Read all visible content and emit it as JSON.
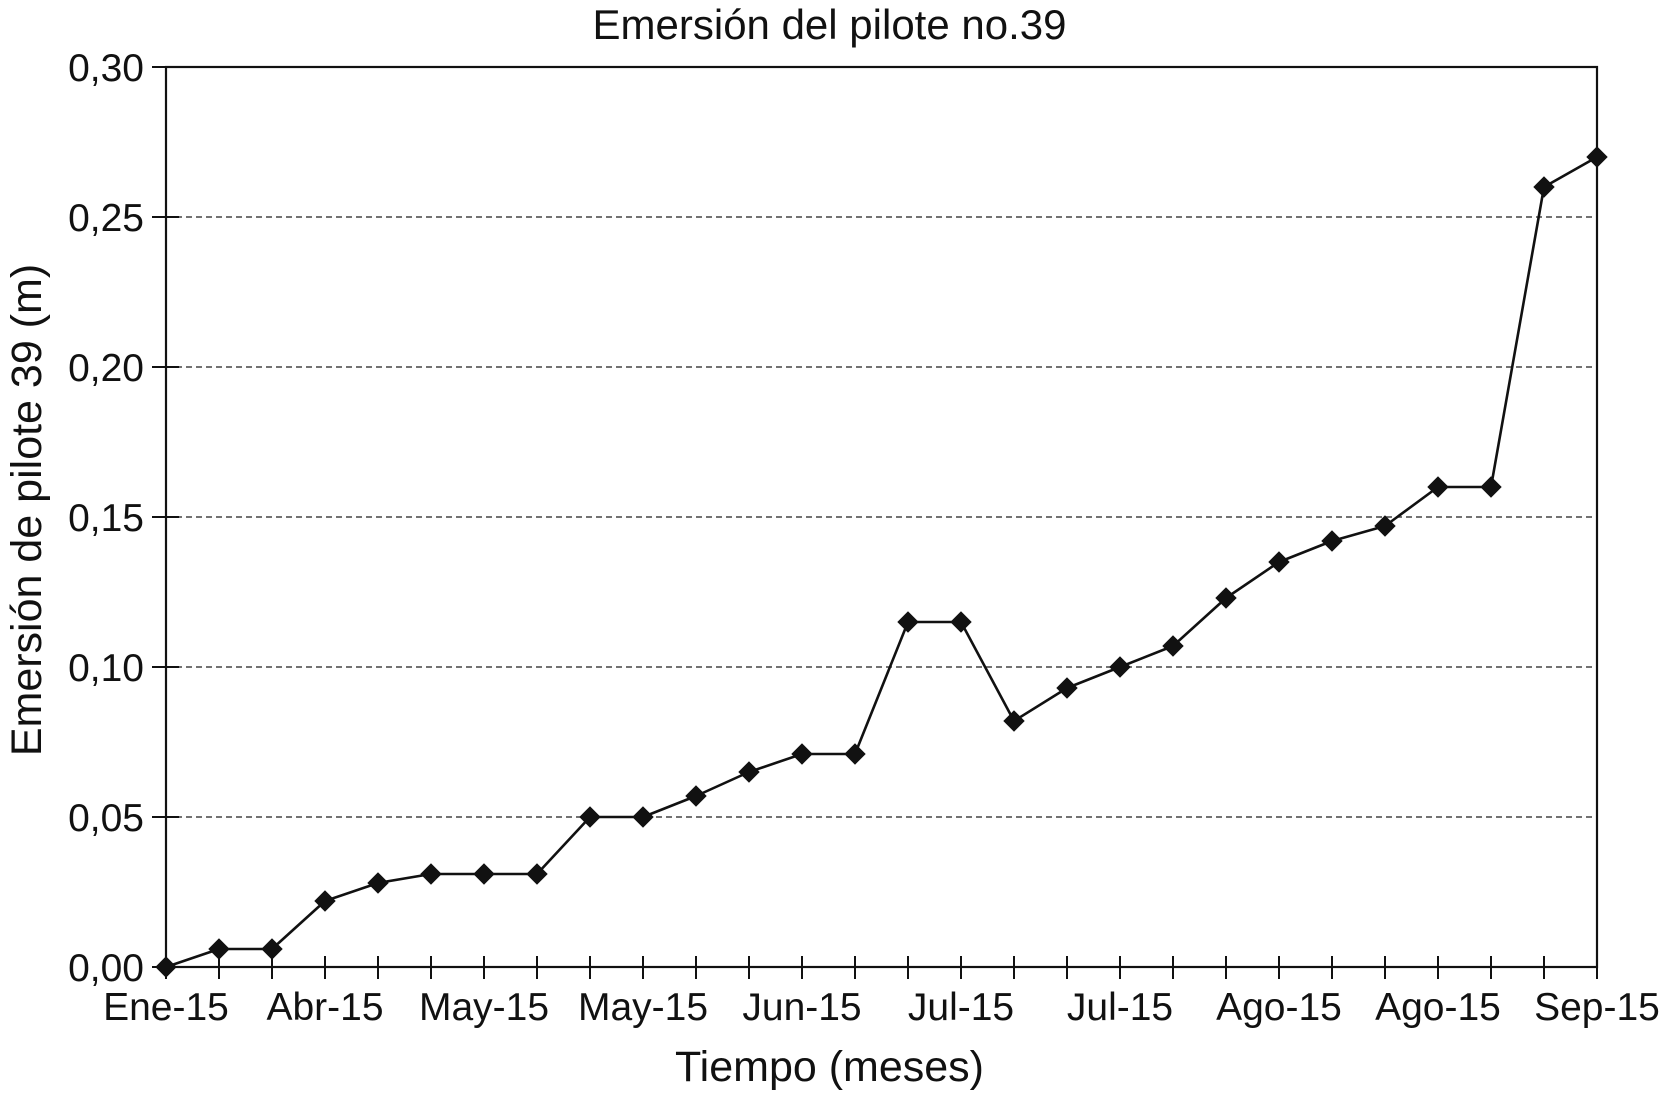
{
  "chart_data": {
    "type": "line",
    "title": "Emersión del pilote no.39",
    "xlabel": "Tiempo (meses)",
    "ylabel": "Emersión de pilote 39 (m)",
    "x_tick_labels": [
      "Ene-15",
      "Abr-15",
      "May-15",
      "May-15",
      "Jun-15",
      "Jul-15",
      "Jul-15",
      "Ago-15",
      "Ago-15",
      "Sep-15"
    ],
    "label_every_n_points": 3,
    "values": [
      0.0,
      0.006,
      0.006,
      0.022,
      0.028,
      0.031,
      0.031,
      0.031,
      0.05,
      0.05,
      0.057,
      0.065,
      0.071,
      0.071,
      0.115,
      0.115,
      0.082,
      0.093,
      0.1,
      0.107,
      0.123,
      0.135,
      0.142,
      0.147,
      0.16,
      0.16,
      0.26,
      0.27
    ],
    "ylim": [
      0,
      0.3
    ],
    "y_tick_step": 0.05,
    "y_tick_labels": [
      "0,00",
      "0,05",
      "0,10",
      "0,15",
      "0,20",
      "0,25",
      "0,30"
    ],
    "grid": "horizontal-dashed",
    "legend": "none",
    "marker": "diamond",
    "line_color": "#111111",
    "marker_color": "#111111",
    "grid_color": "#444444",
    "frame_color": "#111111",
    "background": "#ffffff"
  }
}
